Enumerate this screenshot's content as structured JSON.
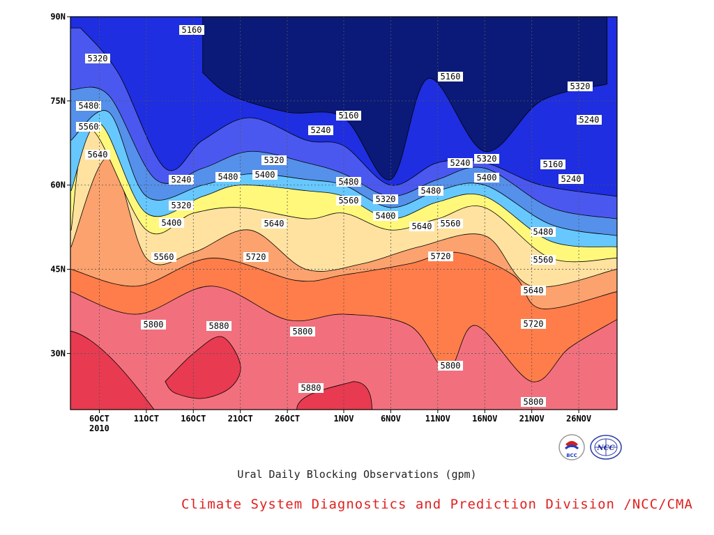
{
  "chart_data": {
    "type": "heatmap",
    "title": "Ural Daily Blocking Observations (gpm)",
    "x": [
      "6OCT",
      "11OCT",
      "16OCT",
      "21OCT",
      "26OCT",
      "1NOV",
      "6NOV",
      "11NOV",
      "16NOV",
      "21NOV",
      "26NOV"
    ],
    "x_sub_label": "2010",
    "x_range": [
      "3OCT 2010",
      "30NOV 2010"
    ],
    "y_ticks": [
      "30N",
      "45N",
      "60N",
      "75N",
      "90N"
    ],
    "ylim": [
      20,
      90
    ],
    "grid": true,
    "contour_levels": [
      5160,
      5240,
      5320,
      5400,
      5480,
      5560,
      5640,
      5720,
      5800,
      5880
    ],
    "contours": [
      {
        "level": 5880,
        "points": [
          [
            "13OCT",
            25
          ],
          [
            "16OCT",
            30
          ],
          [
            "19OCT",
            33
          ],
          [
            "21OCT",
            28
          ],
          [
            "20OCT",
            24
          ],
          [
            "17OCT",
            22
          ],
          [
            "14OCT",
            23
          ]
        ]
      },
      {
        "level": 5800,
        "points": [
          [
            "3OCT",
            41
          ],
          [
            "10OCT",
            37
          ],
          [
            "18OCT",
            42
          ],
          [
            "26OCT",
            36
          ],
          [
            "1NOV",
            37
          ],
          [
            "8NOV",
            35
          ],
          [
            "12NOV",
            27
          ],
          [
            "15NOV",
            35
          ],
          [
            "21NOV",
            25
          ],
          [
            "25NOV",
            31
          ],
          [
            "30NOV",
            36
          ]
        ]
      },
      {
        "level": 5720,
        "points": [
          [
            "3OCT",
            45
          ],
          [
            "10OCT",
            42
          ],
          [
            "18OCT",
            47
          ],
          [
            "27OCT",
            43
          ],
          [
            "1NOV",
            44
          ],
          [
            "8NOV",
            46
          ],
          [
            "13NOV",
            48
          ],
          [
            "19NOV",
            44
          ],
          [
            "22NOV",
            38
          ],
          [
            "30NOV",
            41
          ]
        ]
      },
      {
        "level": 5640,
        "points": [
          [
            "3OCT",
            49
          ],
          [
            "7OCT",
            65
          ],
          [
            "11OCT",
            47
          ],
          [
            "16OCT",
            48
          ],
          [
            "22OCT",
            52
          ],
          [
            "28OCT",
            45
          ],
          [
            "3NOV",
            46
          ],
          [
            "9NOV",
            49
          ],
          [
            "16NOV",
            51
          ],
          [
            "21NOV",
            42
          ],
          [
            "30NOV",
            45
          ]
        ]
      },
      {
        "level": 5560,
        "points": [
          [
            "3OCT",
            52
          ],
          [
            "5OCT",
            70
          ],
          [
            "11OCT",
            52
          ],
          [
            "16OCT",
            55
          ],
          [
            "21OCT",
            56
          ],
          [
            "28OCT",
            54
          ],
          [
            "1NOV",
            55
          ],
          [
            "6NOV",
            52
          ],
          [
            "11NOV",
            54
          ],
          [
            "16NOV",
            56
          ],
          [
            "23NOV",
            47
          ],
          [
            "30NOV",
            47
          ]
        ]
      },
      {
        "level": 5480,
        "points": [
          [
            "3OCT",
            59
          ],
          [
            "6OCT",
            71
          ],
          [
            "11OCT",
            55
          ],
          [
            "17OCT",
            58
          ],
          [
            "21OCT",
            60
          ],
          [
            "28OCT",
            59
          ],
          [
            "1NOV",
            58
          ],
          [
            "6NOV",
            54
          ],
          [
            "11NOV",
            57
          ],
          [
            "16NOV",
            58
          ],
          [
            "23NOV",
            50
          ],
          [
            "30NOV",
            49
          ]
        ]
      },
      {
        "level": 5400,
        "points": [
          [
            "3OCT",
            68
          ],
          [
            "7OCT",
            73
          ],
          [
            "11OCT",
            58
          ],
          [
            "17OCT",
            60
          ],
          [
            "22OCT",
            62
          ],
          [
            "28OCT",
            61
          ],
          [
            "1NOV",
            60
          ],
          [
            "6NOV",
            56
          ],
          [
            "11NOV",
            59
          ],
          [
            "16NOV",
            60
          ],
          [
            "23NOV",
            53
          ],
          [
            "30NOV",
            51
          ]
        ]
      },
      {
        "level": 5320,
        "points": [
          [
            "3OCT",
            77
          ],
          [
            "7OCT",
            76
          ],
          [
            "12OCT",
            61
          ],
          [
            "17OCT",
            63
          ],
          [
            "22OCT",
            66
          ],
          [
            "28OCT",
            64
          ],
          [
            "1NOV",
            62
          ],
          [
            "6NOV",
            58
          ],
          [
            "11NOV",
            61
          ],
          [
            "16NOV",
            63
          ],
          [
            "23NOV",
            56
          ],
          [
            "30NOV",
            54
          ]
        ]
      },
      {
        "level": 5240,
        "points": [
          [
            "4OCT",
            88
          ],
          [
            "8OCT",
            80
          ],
          [
            "13OCT",
            63
          ],
          [
            "17OCT",
            68
          ],
          [
            "22OCT",
            72
          ],
          [
            "28OCT",
            68
          ],
          [
            "1NOV",
            67
          ],
          [
            "6NOV",
            60
          ],
          [
            "11NOV",
            64
          ],
          [
            "16NOV",
            64
          ],
          [
            "22NOV",
            60
          ],
          [
            "30NOV",
            58
          ]
        ]
      },
      {
        "level": 5160,
        "points": [
          [
            "17OCT",
            80
          ],
          [
            "20OCT",
            76
          ],
          [
            "26OCT",
            73
          ],
          [
            "1NOV",
            72
          ],
          [
            "6NOV",
            61
          ],
          [
            "10NOV",
            79
          ],
          [
            "16NOV",
            66
          ],
          [
            "22NOV",
            75
          ],
          [
            "29NOV",
            78
          ]
        ]
      }
    ],
    "legend": "none"
  },
  "labels": {
    "title": "Ural Daily Blocking Observations (gpm)",
    "credit": "Climate System Diagnostics and Prediction Division /NCC/CMA",
    "logo_left": "BCC",
    "logo_right": "NCC"
  },
  "colors": {
    "band_below_5160": "#0b1a78",
    "band_5160_5240": "#1e2ee0",
    "band_5240_5320": "#4a58f0",
    "band_5320_5400": "#5590ea",
    "band_5400_5480": "#66c8ff",
    "band_5480_5560": "#fff87a",
    "band_5560_5640": "#ffe2a0",
    "band_5640_5720": "#fba26e",
    "band_5720_5800": "#ff7d4a",
    "band_5800_5880": "#f2707e",
    "band_above_5880": "#e83a50",
    "credit_text": "#e02020",
    "axis": "#000000"
  }
}
